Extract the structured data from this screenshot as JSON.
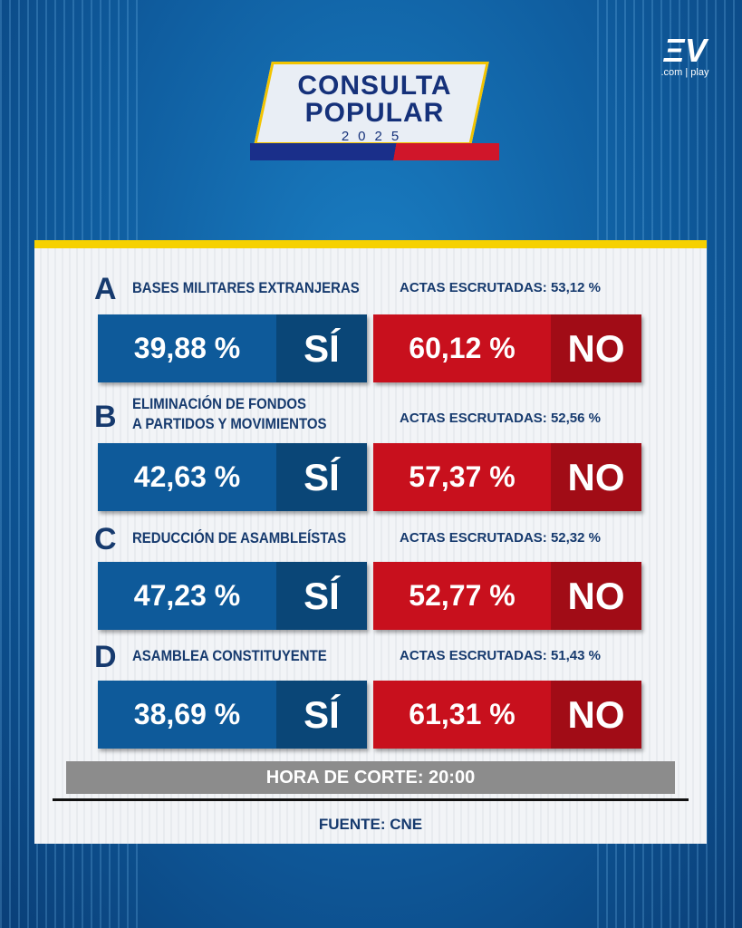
{
  "header": {
    "line1": "CONSULTA",
    "line2": "POPULAR",
    "year": "2025"
  },
  "logo": {
    "mark": "ΞV",
    "sub": ".com | play"
  },
  "questions": [
    {
      "letter": "A",
      "title": [
        "BASES MILITARES EXTRANJERAS"
      ],
      "actas": "ACTAS ESCRUTADAS: 53,12 %",
      "yes": "39,88 %",
      "yes_label": "SÍ",
      "no": "60,12 %",
      "no_label": "NO"
    },
    {
      "letter": "B",
      "title": [
        "ELIMINACIÓN DE FONDOS",
        "A PARTIDOS Y MOVIMIENTOS"
      ],
      "actas": "ACTAS ESCRUTADAS: 52,56 %",
      "yes": "42,63 %",
      "yes_label": "SÍ",
      "no": "57,37 %",
      "no_label": "NO"
    },
    {
      "letter": "C",
      "title": [
        "REDUCCIÓN DE ASAMBLEÍSTAS"
      ],
      "actas": "ACTAS ESCRUTADAS: 52,32 %",
      "yes": "47,23 %",
      "yes_label": "SÍ",
      "no": "52,77 %",
      "no_label": "NO"
    },
    {
      "letter": "D",
      "title": [
        "ASAMBLEA CONSTITUYENTE"
      ],
      "actas": "ACTAS ESCRUTADAS: 51,43 %",
      "yes": "38,69 %",
      "yes_label": "SÍ",
      "no": "61,31 %",
      "no_label": "NO"
    }
  ],
  "footer": {
    "cut": "HORA DE CORTE: 20:00",
    "source": "FUENTE: CNE"
  }
}
